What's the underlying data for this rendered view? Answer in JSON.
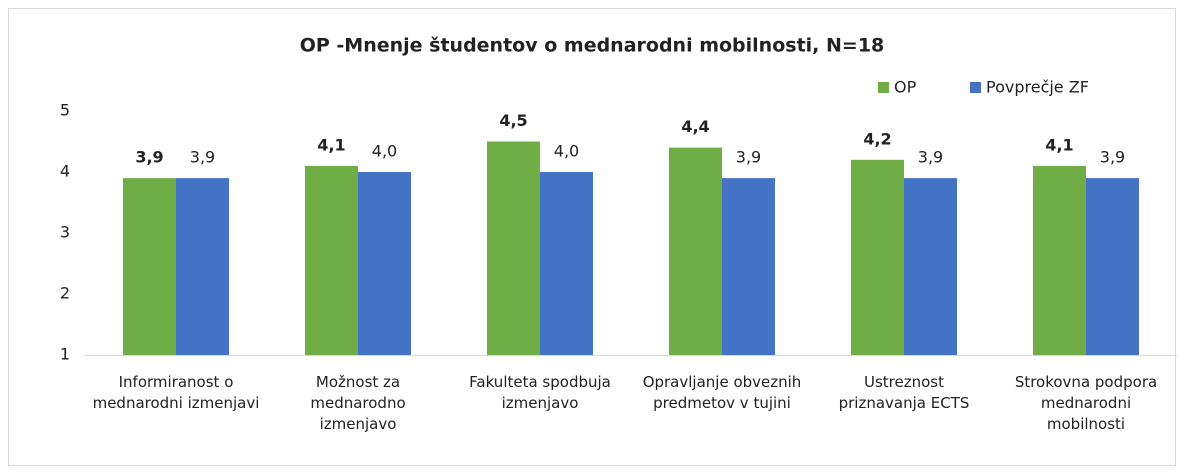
{
  "chart_data": {
    "type": "bar",
    "title": "OP -Mnenje študentov o mednarodni mobilnosti, N=18",
    "categories": [
      "Informiranost o mednarodni izmenjavi",
      "Možnost za mednarodno izmenjavo",
      "Fakulteta spodbuja izmenjavo",
      "Opravljanje obveznih predmetov v tujini",
      "Ustreznost priznavanja ECTS",
      "Strokovna podpora mednarodni mobilnosti"
    ],
    "series": [
      {
        "name": "OP",
        "color": "#70ad47",
        "values": [
          3.9,
          4.1,
          4.5,
          4.4,
          4.2,
          4.1
        ],
        "value_labels": [
          "3,9",
          "4,1",
          "4,5",
          "4,4",
          "4,2",
          "4,1"
        ]
      },
      {
        "name": "Povprečje ZF",
        "color": "#4472c4",
        "values": [
          3.9,
          4.0,
          4.0,
          3.9,
          3.9,
          3.9
        ],
        "value_labels": [
          "3,9",
          "4,0",
          "4,0",
          "3,9",
          "3,9",
          "3,9"
        ]
      }
    ],
    "ylim": [
      1,
      5
    ],
    "yticks": [
      1,
      2,
      3,
      4,
      5
    ],
    "grid": false,
    "legend": "top-right"
  }
}
